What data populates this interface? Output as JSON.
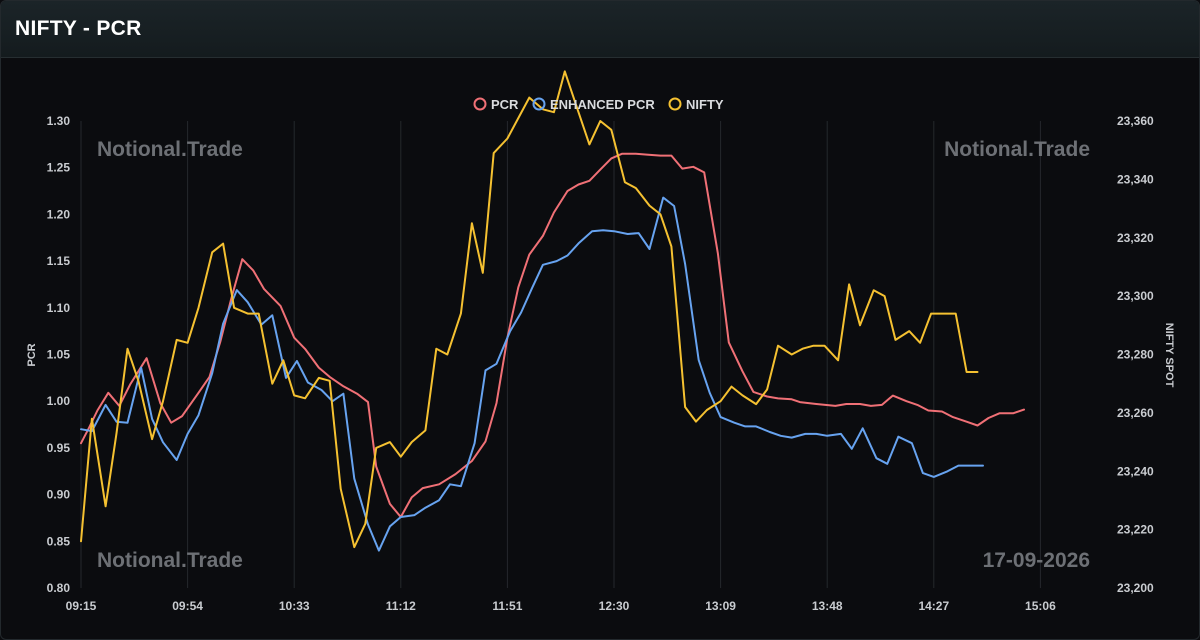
{
  "header": {
    "title": "NIFTY - PCR"
  },
  "watermarks": {
    "top_left": "Notional.Trade",
    "top_right": "Notional.Trade",
    "bottom_left": "Notional.Trade",
    "date": "17-09-2026"
  },
  "colors": {
    "pcr": "#f07076",
    "enhanced_pcr": "#67a3f0",
    "nifty": "#f5c131",
    "grid": "#25282c",
    "background": "#0b0c0f"
  },
  "chart_data": {
    "type": "line",
    "xlabel": "",
    "x_ticks": [
      "09:15",
      "09:54",
      "10:33",
      "11:12",
      "11:51",
      "12:30",
      "13:09",
      "13:48",
      "14:27",
      "15:06"
    ],
    "x_range": [
      "09:15",
      "15:30"
    ],
    "left_axis": {
      "label": "PCR",
      "range": [
        0.8,
        1.3
      ],
      "ticks": [
        "1.30",
        "1.25",
        "1.20",
        "1.15",
        "1.10",
        "1.05",
        "1.00",
        "0.95",
        "0.90",
        "0.85",
        "0.80"
      ]
    },
    "right_axis": {
      "label": "NIFTY SPOT",
      "range": [
        23200,
        23360
      ],
      "ticks": [
        "23,360",
        "23,340",
        "23,320",
        "23,300",
        "23,280",
        "23,260",
        "23,240",
        "23,220",
        "23,200"
      ]
    },
    "legend": {
      "position": "top-center",
      "items": [
        "PCR",
        "ENHANCED PCR",
        "NIFTY"
      ]
    },
    "grid": {
      "vertical": true,
      "horizontal": false
    },
    "series": [
      {
        "name": "PCR",
        "axis": "left",
        "points": [
          [
            "09:15",
            0.955
          ],
          [
            "09:18",
            0.972
          ],
          [
            "09:21",
            0.99
          ],
          [
            "09:25",
            1.009
          ],
          [
            "09:29",
            0.995
          ],
          [
            "09:33",
            1.018
          ],
          [
            "09:39",
            1.046
          ],
          [
            "09:44",
            0.998
          ],
          [
            "09:48",
            0.977
          ],
          [
            "09:52",
            0.984
          ],
          [
            "09:58",
            1.009
          ],
          [
            "10:02",
            1.026
          ],
          [
            "10:06",
            1.064
          ],
          [
            "10:10",
            1.11
          ],
          [
            "10:14",
            1.152
          ],
          [
            "10:18",
            1.14
          ],
          [
            "10:22",
            1.12
          ],
          [
            "10:28",
            1.102
          ],
          [
            "10:33",
            1.068
          ],
          [
            "10:37",
            1.056
          ],
          [
            "10:42",
            1.036
          ],
          [
            "10:46",
            1.026
          ],
          [
            "10:51",
            1.016
          ],
          [
            "10:56",
            1.008
          ],
          [
            "11:00",
            0.999
          ],
          [
            "11:03",
            0.93
          ],
          [
            "11:08",
            0.89
          ],
          [
            "11:12",
            0.876
          ],
          [
            "11:16",
            0.897
          ],
          [
            "11:20",
            0.907
          ],
          [
            "11:26",
            0.911
          ],
          [
            "11:32",
            0.922
          ],
          [
            "11:38",
            0.936
          ],
          [
            "11:43",
            0.957
          ],
          [
            "11:47",
            0.998
          ],
          [
            "11:51",
            1.068
          ],
          [
            "11:55",
            1.122
          ],
          [
            "11:59",
            1.157
          ],
          [
            "12:04",
            1.177
          ],
          [
            "12:08",
            1.202
          ],
          [
            "12:13",
            1.225
          ],
          [
            "12:17",
            1.232
          ],
          [
            "12:21",
            1.236
          ],
          [
            "12:25",
            1.248
          ],
          [
            "12:29",
            1.26
          ],
          [
            "12:33",
            1.265
          ],
          [
            "12:38",
            1.265
          ],
          [
            "12:42",
            1.264
          ],
          [
            "12:47",
            1.263
          ],
          [
            "12:51",
            1.263
          ],
          [
            "12:55",
            1.249
          ],
          [
            "12:59",
            1.251
          ],
          [
            "13:03",
            1.245
          ],
          [
            "13:08",
            1.158
          ],
          [
            "13:12",
            1.063
          ],
          [
            "13:17",
            1.032
          ],
          [
            "13:21",
            1.01
          ],
          [
            "13:26",
            1.005
          ],
          [
            "13:30",
            1.003
          ],
          [
            "13:35",
            1.002
          ],
          [
            "13:38",
            0.999
          ],
          [
            "13:44",
            0.997
          ],
          [
            "13:51",
            0.995
          ],
          [
            "13:55",
            0.997
          ],
          [
            "14:00",
            0.997
          ],
          [
            "14:04",
            0.995
          ],
          [
            "14:08",
            0.996
          ],
          [
            "14:12",
            1.006
          ],
          [
            "14:17",
            1.0
          ],
          [
            "14:21",
            0.996
          ],
          [
            "14:25",
            0.99
          ],
          [
            "14:30",
            0.989
          ],
          [
            "14:34",
            0.983
          ],
          [
            "14:39",
            0.978
          ],
          [
            "14:43",
            0.974
          ],
          [
            "14:47",
            0.982
          ],
          [
            "14:51",
            0.987
          ],
          [
            "14:56",
            0.987
          ],
          [
            "15:00",
            0.991
          ]
        ]
      },
      {
        "name": "ENHANCED PCR",
        "axis": "left",
        "points": [
          [
            "09:15",
            0.97
          ],
          [
            "09:19",
            0.968
          ],
          [
            "09:24",
            0.996
          ],
          [
            "09:28",
            0.978
          ],
          [
            "09:32",
            0.977
          ],
          [
            "09:37",
            1.036
          ],
          [
            "09:41",
            0.981
          ],
          [
            "09:45",
            0.956
          ],
          [
            "09:50",
            0.937
          ],
          [
            "09:54",
            0.965
          ],
          [
            "09:58",
            0.985
          ],
          [
            "10:03",
            1.03
          ],
          [
            "10:07",
            1.083
          ],
          [
            "10:12",
            1.119
          ],
          [
            "10:16",
            1.106
          ],
          [
            "10:21",
            1.082
          ],
          [
            "10:25",
            1.092
          ],
          [
            "10:30",
            1.025
          ],
          [
            "10:34",
            1.043
          ],
          [
            "10:38",
            1.02
          ],
          [
            "10:43",
            1.012
          ],
          [
            "10:47",
            1.0
          ],
          [
            "10:51",
            1.008
          ],
          [
            "10:55",
            0.917
          ],
          [
            "11:00",
            0.868
          ],
          [
            "11:04",
            0.84
          ],
          [
            "11:08",
            0.866
          ],
          [
            "11:12",
            0.876
          ],
          [
            "11:17",
            0.878
          ],
          [
            "11:21",
            0.886
          ],
          [
            "11:26",
            0.894
          ],
          [
            "11:30",
            0.911
          ],
          [
            "11:34",
            0.909
          ],
          [
            "11:39",
            0.955
          ],
          [
            "11:43",
            1.033
          ],
          [
            "11:47",
            1.04
          ],
          [
            "11:52",
            1.075
          ],
          [
            "11:56",
            1.095
          ],
          [
            "12:00",
            1.121
          ],
          [
            "12:04",
            1.146
          ],
          [
            "12:09",
            1.15
          ],
          [
            "12:13",
            1.156
          ],
          [
            "12:17",
            1.169
          ],
          [
            "12:22",
            1.182
          ],
          [
            "12:26",
            1.183
          ],
          [
            "12:30",
            1.182
          ],
          [
            "12:35",
            1.179
          ],
          [
            "12:39",
            1.18
          ],
          [
            "12:43",
            1.163
          ],
          [
            "12:48",
            1.218
          ],
          [
            "12:52",
            1.209
          ],
          [
            "12:56",
            1.147
          ],
          [
            "13:01",
            1.044
          ],
          [
            "13:05",
            1.009
          ],
          [
            "13:09",
            0.983
          ],
          [
            "13:14",
            0.977
          ],
          [
            "13:18",
            0.973
          ],
          [
            "13:22",
            0.973
          ],
          [
            "13:27",
            0.967
          ],
          [
            "13:31",
            0.963
          ],
          [
            "13:35",
            0.961
          ],
          [
            "13:40",
            0.965
          ],
          [
            "13:44",
            0.965
          ],
          [
            "13:48",
            0.963
          ],
          [
            "13:53",
            0.965
          ],
          [
            "13:57",
            0.949
          ],
          [
            "14:01",
            0.971
          ],
          [
            "14:06",
            0.939
          ],
          [
            "14:10",
            0.933
          ],
          [
            "14:14",
            0.962
          ],
          [
            "14:19",
            0.955
          ],
          [
            "14:23",
            0.923
          ],
          [
            "14:27",
            0.919
          ],
          [
            "14:32",
            0.925
          ],
          [
            "14:36",
            0.931
          ],
          [
            "14:40",
            0.931
          ],
          [
            "14:45",
            0.931
          ]
        ]
      },
      {
        "name": "NIFTY",
        "axis": "right",
        "points": [
          [
            "09:15",
            23216
          ],
          [
            "09:19",
            23258
          ],
          [
            "09:24",
            23228
          ],
          [
            "09:28",
            23253
          ],
          [
            "09:32",
            23282
          ],
          [
            "09:36",
            23271
          ],
          [
            "09:41",
            23251
          ],
          [
            "09:45",
            23264
          ],
          [
            "09:50",
            23285
          ],
          [
            "09:54",
            23284
          ],
          [
            "09:58",
            23296
          ],
          [
            "10:03",
            23315
          ],
          [
            "10:07",
            23318
          ],
          [
            "10:11",
            23296
          ],
          [
            "10:16",
            23294
          ],
          [
            "10:20",
            23294
          ],
          [
            "10:25",
            23270
          ],
          [
            "10:29",
            23278
          ],
          [
            "10:33",
            23266
          ],
          [
            "10:37",
            23265
          ],
          [
            "10:42",
            23272
          ],
          [
            "10:46",
            23271
          ],
          [
            "10:50",
            23234
          ],
          [
            "10:55",
            23214
          ],
          [
            "10:59",
            23222
          ],
          [
            "11:03",
            23248
          ],
          [
            "11:08",
            23250
          ],
          [
            "11:12",
            23245
          ],
          [
            "11:16",
            23250
          ],
          [
            "11:21",
            23254
          ],
          [
            "11:25",
            23282
          ],
          [
            "11:29",
            23280
          ],
          [
            "11:34",
            23294
          ],
          [
            "11:38",
            23325
          ],
          [
            "11:42",
            23308
          ],
          [
            "11:46",
            23349
          ],
          [
            "11:51",
            23354
          ],
          [
            "11:55",
            23361
          ],
          [
            "11:59",
            23368
          ],
          [
            "12:04",
            23364
          ],
          [
            "12:08",
            23363
          ],
          [
            "12:12",
            23377
          ],
          [
            "12:17",
            23363
          ],
          [
            "12:21",
            23352
          ],
          [
            "12:25",
            23360
          ],
          [
            "12:29",
            23357
          ],
          [
            "12:34",
            23339
          ],
          [
            "12:38",
            23337
          ],
          [
            "12:43",
            23331
          ],
          [
            "12:47",
            23328
          ],
          [
            "12:51",
            23317
          ],
          [
            "12:56",
            23262
          ],
          [
            "13:00",
            23257
          ],
          [
            "13:04",
            23261
          ],
          [
            "13:09",
            23264
          ],
          [
            "13:13",
            23269
          ],
          [
            "13:17",
            23266
          ],
          [
            "13:22",
            23263
          ],
          [
            "13:26",
            23268
          ],
          [
            "13:30",
            23283
          ],
          [
            "13:35",
            23280
          ],
          [
            "13:39",
            23282
          ],
          [
            "13:43",
            23283
          ],
          [
            "13:47",
            23283
          ],
          [
            "13:52",
            23278
          ],
          [
            "13:56",
            23304
          ],
          [
            "14:00",
            23290
          ],
          [
            "14:05",
            23302
          ],
          [
            "14:09",
            23300
          ],
          [
            "14:13",
            23285
          ],
          [
            "14:18",
            23288
          ],
          [
            "14:22",
            23284
          ],
          [
            "14:26",
            23294
          ],
          [
            "14:31",
            23294
          ],
          [
            "14:35",
            23294
          ],
          [
            "14:39",
            23274
          ],
          [
            "14:43",
            23274
          ]
        ]
      }
    ]
  }
}
